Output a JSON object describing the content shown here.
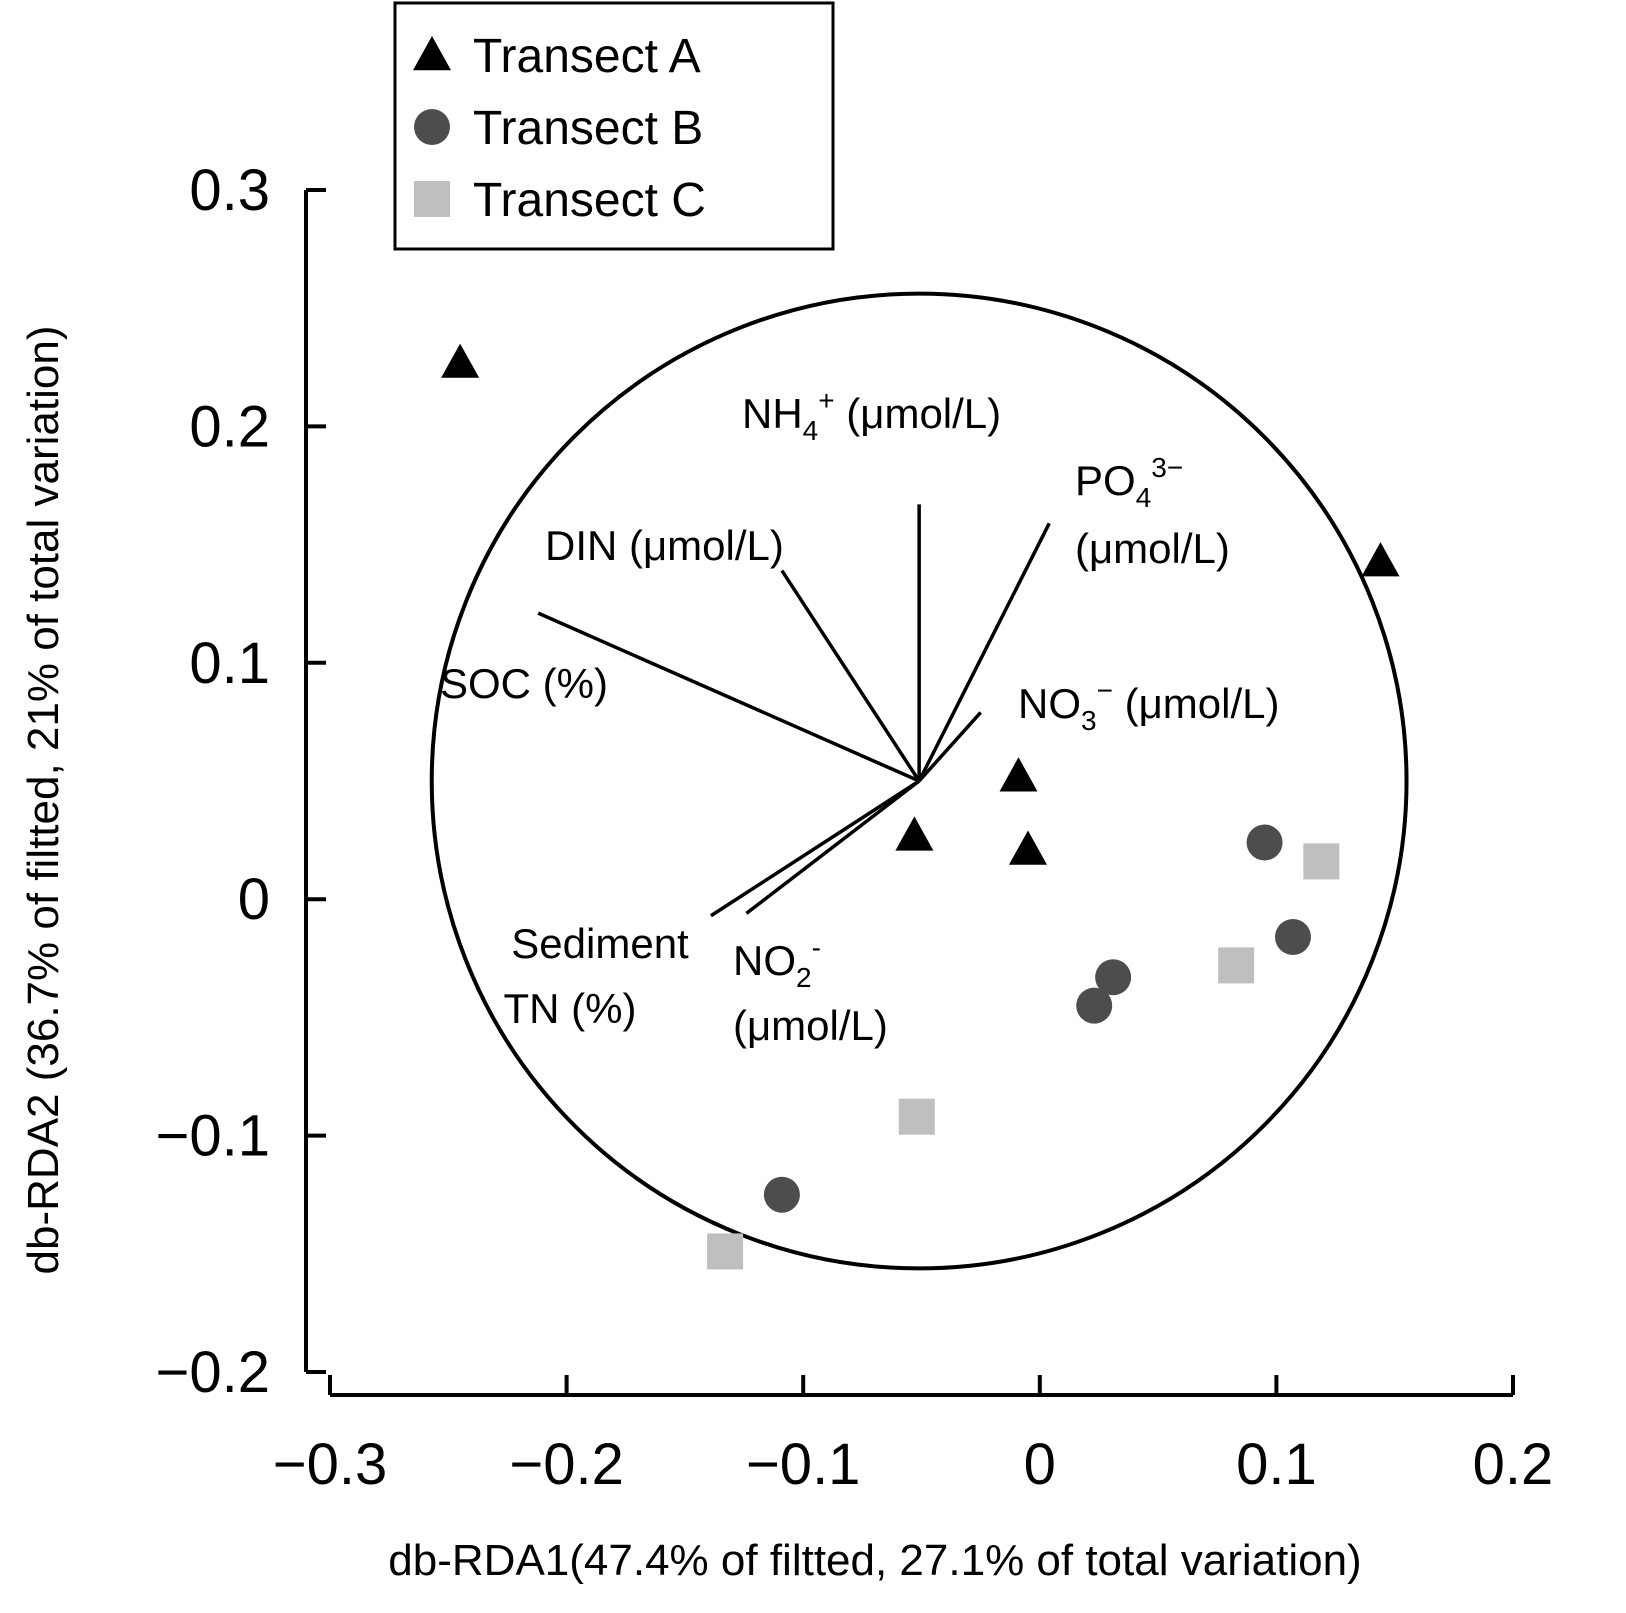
{
  "chart_data": {
    "type": "scatter",
    "title": "",
    "xlabel": "db-RDA1(47.4% of filtted, 27.1% of total variation)",
    "ylabel": "db-RDA2 (36.7% of filtted, 21% of total variation)",
    "xlim": [
      -0.3,
      0.2
    ],
    "ylim": [
      -0.2,
      0.3
    ],
    "grid": false,
    "legend_position": "top-left",
    "x_ticks": [
      {
        "value": -0.3,
        "label": "−0.3"
      },
      {
        "value": -0.2,
        "label": "−0.2"
      },
      {
        "value": -0.1,
        "label": "−0.1"
      },
      {
        "value": 0,
        "label": "0"
      },
      {
        "value": 0.1,
        "label": "0.1"
      },
      {
        "value": 0.2,
        "label": "0.2"
      }
    ],
    "y_ticks": [
      {
        "value": -0.2,
        "label": "−0.2"
      },
      {
        "value": -0.1,
        "label": "−0.1"
      },
      {
        "value": 0,
        "label": "0"
      },
      {
        "value": 0.1,
        "label": "0.1"
      },
      {
        "value": 0.2,
        "label": "0.2"
      },
      {
        "value": 0.3,
        "label": "0.3"
      }
    ],
    "series": [
      {
        "name": "Transect A",
        "marker": "triangle",
        "color": "#000000",
        "points": [
          {
            "x": -0.245,
            "y": 0.227
          },
          {
            "x": 0.144,
            "y": 0.143
          },
          {
            "x": -0.009,
            "y": 0.052
          },
          {
            "x": -0.005,
            "y": 0.021
          },
          {
            "x": -0.053,
            "y": 0.027
          }
        ]
      },
      {
        "name": "Transect B",
        "marker": "circle",
        "color": "#4d4d4d",
        "points": [
          {
            "x": 0.095,
            "y": 0.024
          },
          {
            "x": 0.107,
            "y": -0.016
          },
          {
            "x": 0.031,
            "y": -0.033
          },
          {
            "x": 0.023,
            "y": -0.045
          },
          {
            "x": -0.109,
            "y": -0.125
          }
        ]
      },
      {
        "name": "Transect C",
        "marker": "square",
        "color": "#bfbfbf",
        "points": [
          {
            "x": 0.119,
            "y": 0.016
          },
          {
            "x": 0.083,
            "y": -0.028
          },
          {
            "x": -0.052,
            "y": -0.092
          },
          {
            "x": -0.133,
            "y": -0.149
          }
        ]
      }
    ],
    "correlation_circle": {
      "center_x": -0.051,
      "center_y": 0.05,
      "radius": 0.206
    },
    "vectors": [
      {
        "id": "nh4",
        "label_main": "NH",
        "label_sub": "4",
        "label_sup": "+",
        "label_tail": " (μmol/L)",
        "x": -0.051,
        "y": 0.167
      },
      {
        "id": "po4",
        "label_main": "PO",
        "label_sub": "4",
        "label_sup": "3−",
        "label_line2": "(μmol/L)",
        "x": 0.004,
        "y": 0.159
      },
      {
        "id": "din",
        "label_main": "DIN (μmol/L)",
        "x": -0.109,
        "y": 0.139
      },
      {
        "id": "soc",
        "label_main": "SOC (%)",
        "x": -0.212,
        "y": 0.121
      },
      {
        "id": "no3",
        "label_main": "NO",
        "label_sub": "3",
        "label_sup": "−",
        "label_tail": " (μmol/L)",
        "x": -0.025,
        "y": 0.079
      },
      {
        "id": "tn",
        "label_main": "Sediment",
        "label_line2": "TN (%)",
        "x": -0.139,
        "y": -0.007
      },
      {
        "id": "no2",
        "label_main": "NO",
        "label_sub": "2",
        "label_sup": "-",
        "label_line2": "(μmol/L)",
        "x": -0.124,
        "y": -0.006
      }
    ]
  }
}
